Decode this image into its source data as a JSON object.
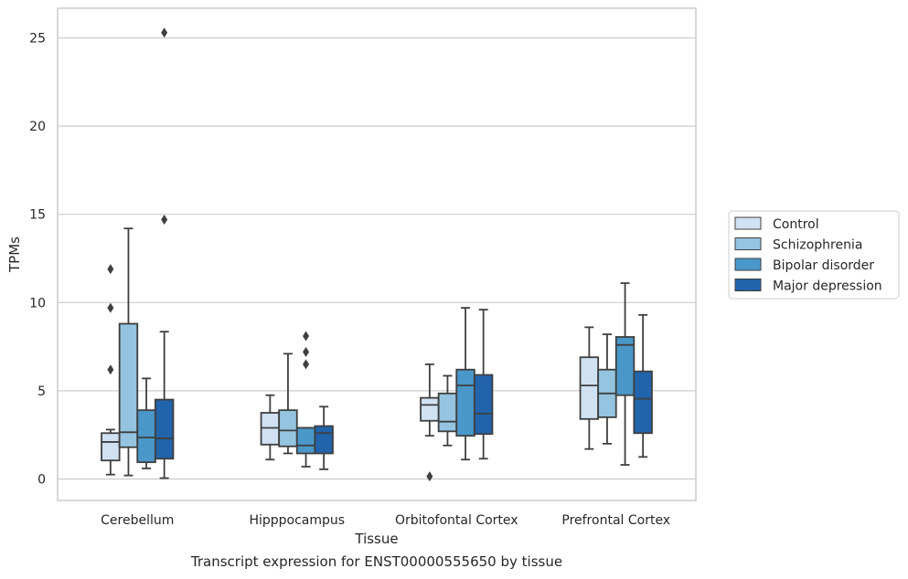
{
  "chart_data": {
    "type": "box",
    "xlabel": "Tissue",
    "ylabel": "TPMs",
    "caption": "Transcript expression for ENST00000555650 by tissue",
    "ylim": [
      -1.2,
      26.6
    ],
    "yticks": [
      0,
      5,
      10,
      15,
      20,
      25
    ],
    "grid": "horizontal",
    "legend_position": "right",
    "categories": [
      "Cerebellum",
      "Hipppocampus",
      "Orbitofontal Cortex",
      "Prefrontal Cortex"
    ],
    "series": [
      {
        "name": "Control",
        "color": "#d0e1f2",
        "boxes": [
          {
            "whislo": 0.25,
            "q1": 1.05,
            "med": 2.1,
            "q3": 2.6,
            "whishi": 2.8,
            "fliers": [
              6.2,
              9.7,
              11.9
            ]
          },
          {
            "whislo": 1.1,
            "q1": 1.95,
            "med": 2.9,
            "q3": 3.75,
            "whishi": 4.75,
            "fliers": []
          },
          {
            "whislo": 2.45,
            "q1": 3.3,
            "med": 4.2,
            "q3": 4.6,
            "whishi": 6.5,
            "fliers": [
              0.15
            ]
          },
          {
            "whislo": 1.7,
            "q1": 3.4,
            "med": 5.3,
            "q3": 6.9,
            "whishi": 8.6,
            "fliers": []
          }
        ]
      },
      {
        "name": "Schizophrenia",
        "color": "#94c4df",
        "boxes": [
          {
            "whislo": 0.2,
            "q1": 1.8,
            "med": 2.65,
            "q3": 8.8,
            "whishi": 14.2,
            "fliers": []
          },
          {
            "whislo": 1.45,
            "q1": 1.85,
            "med": 2.75,
            "q3": 3.9,
            "whishi": 7.1,
            "fliers": []
          },
          {
            "whislo": 1.9,
            "q1": 2.7,
            "med": 3.25,
            "q3": 4.85,
            "whishi": 5.85,
            "fliers": []
          },
          {
            "whislo": 2.0,
            "q1": 3.5,
            "med": 4.85,
            "q3": 6.2,
            "whishi": 8.2,
            "fliers": []
          }
        ]
      },
      {
        "name": "Bipolar disorder",
        "color": "#4a98c9",
        "boxes": [
          {
            "whislo": 0.6,
            "q1": 0.95,
            "med": 2.35,
            "q3": 3.9,
            "whishi": 5.7,
            "fliers": []
          },
          {
            "whislo": 0.7,
            "q1": 1.45,
            "med": 1.9,
            "q3": 2.9,
            "whishi": 2.9,
            "fliers": [
              6.5,
              7.2,
              8.1
            ]
          },
          {
            "whislo": 1.1,
            "q1": 2.45,
            "med": 5.3,
            "q3": 6.2,
            "whishi": 9.7,
            "fliers": []
          },
          {
            "whislo": 0.8,
            "q1": 4.75,
            "med": 7.6,
            "q3": 8.05,
            "whishi": 11.1,
            "fliers": []
          }
        ]
      },
      {
        "name": "Major depression",
        "color": "#2264ab",
        "boxes": [
          {
            "whislo": 0.05,
            "q1": 1.15,
            "med": 2.3,
            "q3": 4.5,
            "whishi": 8.35,
            "fliers": [
              14.7,
              25.3
            ]
          },
          {
            "whislo": 0.55,
            "q1": 1.45,
            "med": 2.6,
            "q3": 3.0,
            "whishi": 4.1,
            "fliers": []
          },
          {
            "whislo": 1.15,
            "q1": 2.55,
            "med": 3.7,
            "q3": 5.9,
            "whishi": 9.6,
            "fliers": []
          },
          {
            "whislo": 1.25,
            "q1": 2.6,
            "med": 4.55,
            "q3": 6.1,
            "whishi": 9.3,
            "fliers": []
          }
        ]
      }
    ]
  }
}
